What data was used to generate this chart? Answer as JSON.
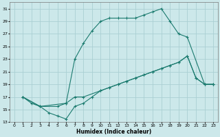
{
  "xlabel": "Humidex (Indice chaleur)",
  "bg_color": "#cce8ea",
  "grid_color": "#aacfd3",
  "line_color": "#1a7a6e",
  "xlim": [
    -0.5,
    23.5
  ],
  "ylim": [
    13,
    32
  ],
  "xticks": [
    0,
    1,
    2,
    3,
    4,
    5,
    6,
    7,
    8,
    9,
    10,
    11,
    12,
    13,
    14,
    15,
    16,
    17,
    18,
    19,
    20,
    21,
    22,
    23
  ],
  "yticks": [
    13,
    15,
    17,
    19,
    21,
    23,
    25,
    27,
    29,
    31
  ],
  "line2_x": [
    1,
    3,
    6,
    7,
    8,
    9,
    10,
    11,
    12,
    13,
    14,
    15,
    16,
    17,
    18,
    19,
    20,
    22,
    23
  ],
  "line2_y": [
    17,
    15.5,
    16,
    23,
    25.5,
    27.5,
    29,
    29.5,
    29.5,
    29.5,
    29.5,
    30,
    30.5,
    31,
    29,
    27,
    26.5,
    19,
    19
  ],
  "line1_x": [
    1,
    3,
    5,
    6,
    7,
    8,
    10,
    11,
    12,
    13,
    14,
    15,
    16,
    17,
    18,
    19,
    20,
    21,
    22,
    23
  ],
  "line1_y": [
    17,
    15.5,
    15.5,
    16,
    17,
    17,
    18,
    18.5,
    19,
    19.5,
    20,
    20.5,
    21,
    21.5,
    22,
    22.5,
    23.5,
    20,
    19,
    19
  ],
  "line3_x": [
    1,
    2,
    3,
    4,
    5,
    6,
    7,
    8,
    9,
    10,
    11,
    12,
    13,
    14,
    15,
    16,
    17,
    18,
    19,
    20,
    21,
    22,
    23
  ],
  "line3_y": [
    17,
    16,
    15.5,
    14.5,
    14,
    13.5,
    15.5,
    16,
    17,
    18,
    18.5,
    19,
    19.5,
    20,
    20.5,
    21,
    21.5,
    22,
    22.5,
    23.5,
    20,
    19,
    19
  ]
}
